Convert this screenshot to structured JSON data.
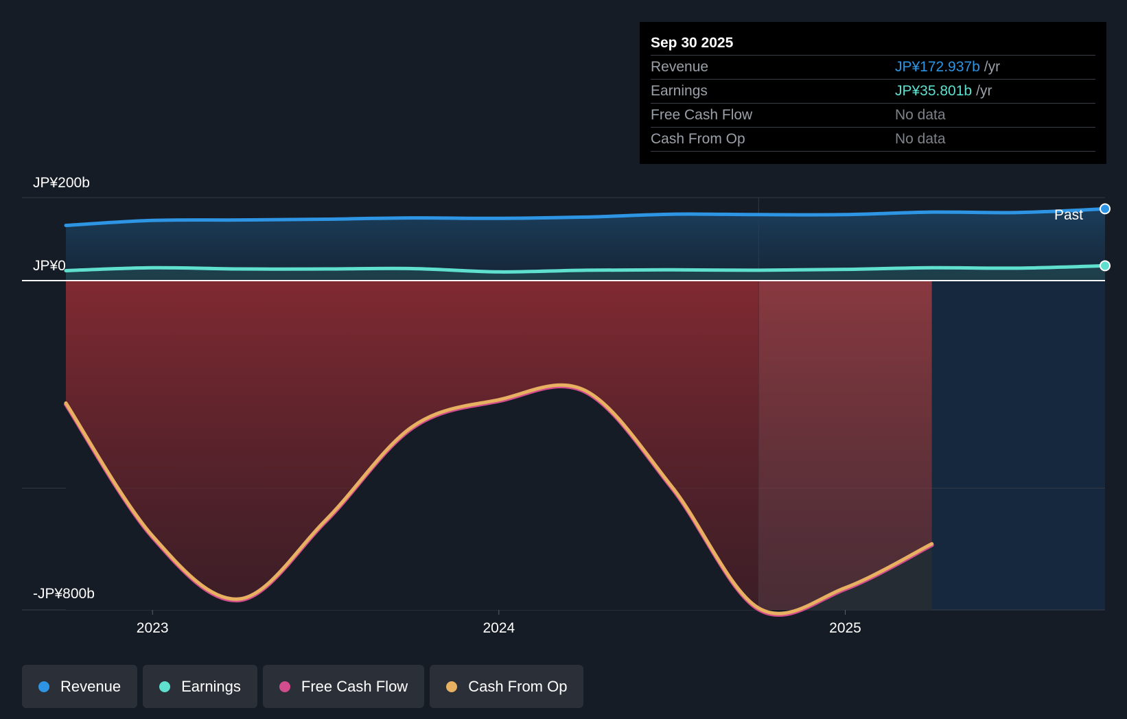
{
  "chart_data": {
    "type": "area",
    "y_axis": {
      "min": -800,
      "max": 200,
      "unit": "JP¥ b",
      "labels": [
        {
          "value": 200,
          "text": "JP¥200b"
        },
        {
          "value": 0,
          "text": "JP¥0"
        },
        {
          "value": -800,
          "text": "-JP¥800b"
        }
      ],
      "gridlines": [
        200,
        0,
        -500
      ]
    },
    "x_axis": {
      "min": 2022.75,
      "max": 2025.75,
      "ticks": [
        {
          "value": 2023,
          "text": "2023"
        },
        {
          "value": 2024,
          "text": "2024"
        },
        {
          "value": 2025,
          "text": "2025"
        }
      ]
    },
    "past_marker": {
      "x": 2024.75,
      "label": "Past"
    },
    "series": [
      {
        "key": "revenue",
        "name": "Revenue",
        "color": "#2d95e3",
        "x": [
          2022.75,
          2023.0,
          2023.25,
          2023.5,
          2023.75,
          2024.0,
          2024.25,
          2024.5,
          2024.75,
          2025.0,
          2025.25,
          2025.5,
          2025.75
        ],
        "values": [
          133,
          145,
          146,
          148,
          151,
          150,
          153,
          160,
          159,
          159,
          165,
          164,
          172.937
        ]
      },
      {
        "key": "earnings",
        "name": "Earnings",
        "color": "#5fe0cf",
        "x": [
          2022.75,
          2023.0,
          2023.25,
          2023.5,
          2023.75,
          2024.0,
          2024.25,
          2024.5,
          2024.75,
          2025.0,
          2025.25,
          2025.5,
          2025.75
        ],
        "values": [
          24,
          31,
          28,
          28,
          29,
          21,
          25,
          26,
          25,
          27,
          31,
          30,
          35.801
        ]
      },
      {
        "key": "fcf",
        "name": "Free Cash Flow",
        "color": "#d14d8d",
        "x": [
          2022.75,
          2023.0,
          2023.25,
          2023.5,
          2023.75,
          2024.0,
          2024.25,
          2024.5,
          2024.75,
          2025.0,
          2025.25
        ],
        "values": [
          -298,
          -618,
          -770,
          -580,
          -355,
          -290,
          -268,
          -500,
          -792,
          -743,
          -637
        ]
      },
      {
        "key": "cfo",
        "name": "Cash From Op",
        "color": "#e8b162",
        "x": [
          2022.75,
          2023.0,
          2023.25,
          2023.5,
          2023.75,
          2024.0,
          2024.25,
          2024.5,
          2024.75,
          2025.0,
          2025.25
        ],
        "values": [
          -295,
          -615,
          -767,
          -577,
          -352,
          -287,
          -265,
          -497,
          -789,
          -740,
          -634
        ]
      }
    ]
  },
  "tooltip": {
    "date": "Sep 30 2025",
    "rows": [
      {
        "label": "Revenue",
        "value": "JP¥172.937b",
        "unit": "/yr",
        "color": "#2d95e3"
      },
      {
        "label": "Earnings",
        "value": "JP¥35.801b",
        "unit": "/yr",
        "color": "#5fe0cf"
      },
      {
        "label": "Free Cash Flow",
        "value": "No data",
        "unit": "",
        "color": "#7e838a"
      },
      {
        "label": "Cash From Op",
        "value": "No data",
        "unit": "",
        "color": "#7e838a"
      }
    ]
  },
  "legend": [
    {
      "label": "Revenue",
      "color": "#2d95e3"
    },
    {
      "label": "Earnings",
      "color": "#5fe0cf"
    },
    {
      "label": "Free Cash Flow",
      "color": "#d14d8d"
    },
    {
      "label": "Cash From Op",
      "color": "#e8b162"
    }
  ]
}
